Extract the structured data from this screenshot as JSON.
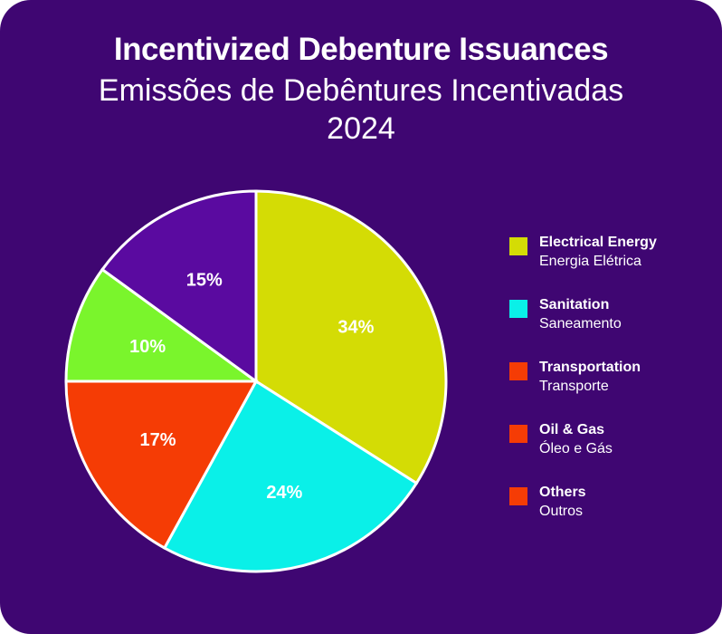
{
  "title": "Incentivized Debenture Issuances",
  "subtitle_line1": "Emissões de Debêntures Incentivadas",
  "subtitle_line2": "2024",
  "chart_data": {
    "type": "pie",
    "title": "Incentivized Debenture Issuances",
    "subtitle": "Emissões de Debêntures Incentivadas 2024",
    "slices": [
      {
        "label": "Electrical Energy",
        "value": 34,
        "data_label": "34%",
        "color": "#d4dc05"
      },
      {
        "label": "Sanitation",
        "value": 24,
        "data_label": "24%",
        "color": "#0af0e8"
      },
      {
        "label": "Transportation",
        "value": 17,
        "data_label": "17%",
        "color": "#f53c05"
      },
      {
        "label": "Oil & Gas",
        "value": 10,
        "data_label": "10%",
        "color": "#7af52c"
      },
      {
        "label": "Others",
        "value": 15,
        "data_label": "15%",
        "color": "#5a0aa0"
      }
    ],
    "legend_position": "right"
  },
  "legend": [
    {
      "en": "Electrical Energy",
      "pt": "Energia Elétrica",
      "color": "#d4dc05"
    },
    {
      "en": "Sanitation",
      "pt": "Saneamento",
      "color": "#0af0e8"
    },
    {
      "en": "Transportation",
      "pt": "Transporte",
      "color": "#f53c05"
    },
    {
      "en": "Oil & Gas",
      "pt": "Óleo e Gás",
      "color": "#f53c05"
    },
    {
      "en": "Others",
      "pt": "Outros",
      "color": "#f53c05"
    }
  ]
}
